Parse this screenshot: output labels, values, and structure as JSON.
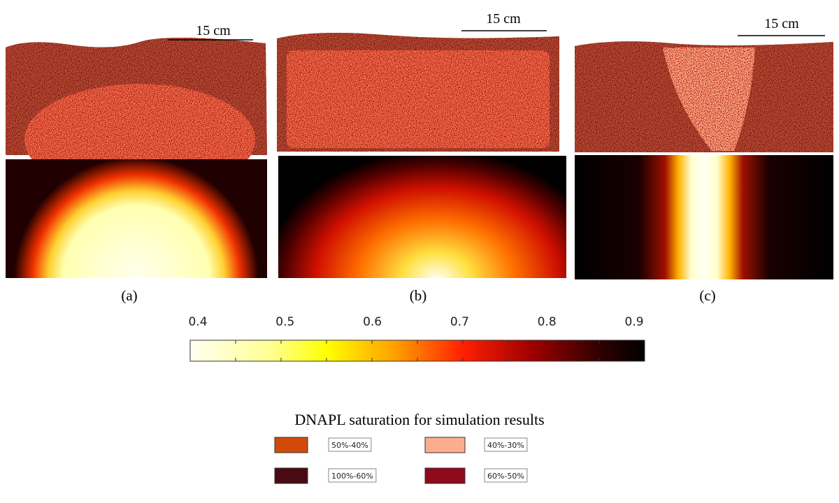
{
  "panels": [
    {
      "label": "(a)",
      "scale_bar": "15 cm"
    },
    {
      "label": "(b)",
      "scale_bar": "15 cm"
    },
    {
      "label": "(c)",
      "scale_bar": "15 cm"
    }
  ],
  "colorbar": {
    "ticks": [
      0.4,
      0.5,
      0.6,
      0.7,
      0.8,
      0.9
    ]
  },
  "caption": "DNAPL saturation for simulation results",
  "legend": [
    {
      "label": "50%-40%",
      "color": "#d24a0a"
    },
    {
      "label": "40%-30%",
      "color": "#fcae8c"
    },
    {
      "label": "100%-60%",
      "color": "#4a0a14"
    },
    {
      "label": "60%-50%",
      "color": "#8f0a1a"
    }
  ]
}
